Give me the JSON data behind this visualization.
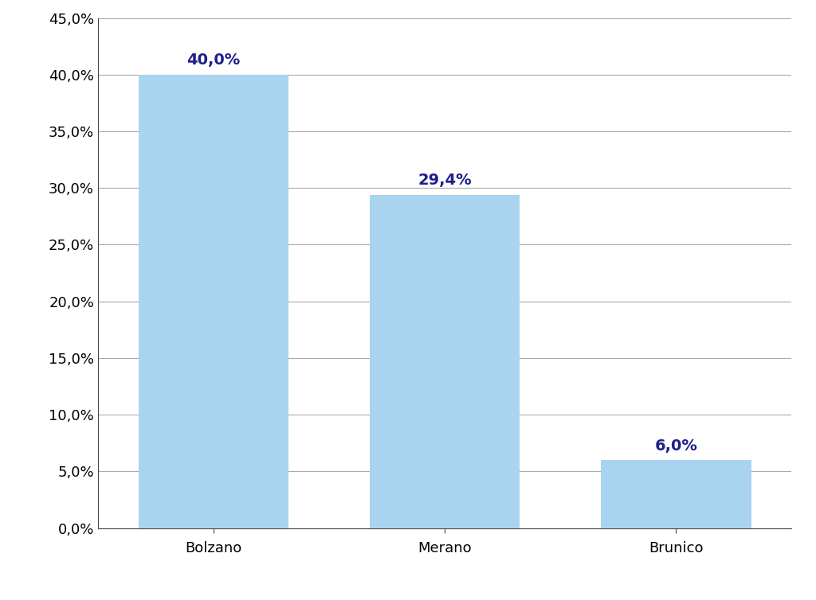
{
  "categories": [
    "Bolzano",
    "Merano",
    "Brunico"
  ],
  "values": [
    40.0,
    29.4,
    6.0
  ],
  "labels": [
    "40,0%",
    "29,4%",
    "6,0%"
  ],
  "bar_color": "#a8d4f0",
  "label_color": "#1f1f8c",
  "ylim": [
    0,
    45
  ],
  "yticks": [
    0,
    5,
    10,
    15,
    20,
    25,
    30,
    35,
    40,
    45
  ],
  "ytick_labels": [
    "0,0%",
    "5,0%",
    "10,0%",
    "15,0%",
    "20,0%",
    "25,0%",
    "30,0%",
    "35,0%",
    "40,0%",
    "45,0%"
  ],
  "background_color": "#ffffff",
  "grid_color": "#aaaaaa",
  "label_fontsize": 14,
  "tick_fontsize": 13,
  "bar_width": 0.65,
  "figsize": [
    10.24,
    7.54
  ],
  "dpi": 100
}
